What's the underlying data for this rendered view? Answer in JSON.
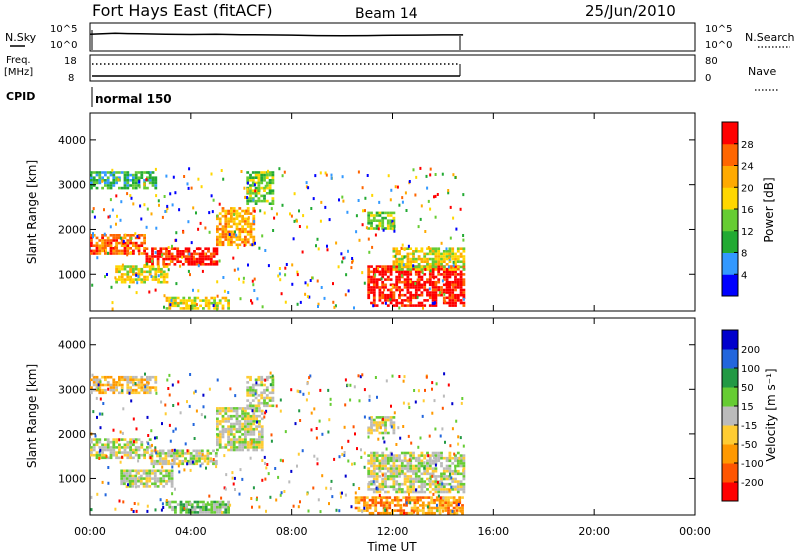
{
  "header": {
    "station": "Fort Hays East (fitACF)",
    "beam": "Beam 14",
    "date": "25/Jun/2010"
  },
  "nsky_panel": {
    "left_label": "N.Sky",
    "left_ticks": [
      "10^5",
      "10^0"
    ],
    "right_ticks": [
      "10^5",
      "10^0"
    ],
    "right_label": "N.Search",
    "nsky_profile": [
      [
        0.0,
        0.88
      ],
      [
        0.5,
        0.9
      ],
      [
        1.0,
        0.93
      ],
      [
        1.5,
        0.91
      ],
      [
        2.0,
        0.9
      ],
      [
        3.0,
        0.88
      ],
      [
        4.0,
        0.86
      ],
      [
        5.0,
        0.87
      ],
      [
        6.0,
        0.85
      ],
      [
        7.0,
        0.84
      ],
      [
        8.0,
        0.83
      ],
      [
        9.0,
        0.8
      ],
      [
        10.0,
        0.79
      ],
      [
        11.0,
        0.8
      ],
      [
        12.0,
        0.82
      ],
      [
        13.0,
        0.83
      ],
      [
        14.0,
        0.84
      ],
      [
        14.8,
        0.84
      ]
    ]
  },
  "freq_panel": {
    "left_label_line1": "Freq.",
    "left_label_line2": "[MHz]",
    "left_ticks": [
      "18",
      "8"
    ],
    "right_ticks": [
      "80",
      "0"
    ],
    "right_label": "Nave"
  },
  "cpid": {
    "label": "CPID",
    "value": "normal 150"
  },
  "colors": {
    "power": [
      "#0000ff",
      "#3399ff",
      "#22aa33",
      "#66cc33",
      "#ffd700",
      "#ffaa00",
      "#ff6600",
      "#ff0000"
    ],
    "velocity": [
      "#ff0000",
      "#ff5500",
      "#ff9900",
      "#ffcc33",
      "#bbbbbb",
      "#66cc33",
      "#229944",
      "#2266dd",
      "#0000cc"
    ]
  },
  "chart_data": [
    {
      "type": "heatmap",
      "panel": "power",
      "xlabel": "",
      "ylabel": "Slant Range [km]",
      "xlim": [
        0,
        24
      ],
      "ylim": [
        180,
        4600
      ],
      "yticks": [
        1000,
        2000,
        3000,
        4000
      ],
      "colorbar_label": "Power [dB]",
      "colorbar_ticks": [
        "4",
        "8",
        "12",
        "16",
        "20",
        "24",
        "28"
      ],
      "data_extent_hours": [
        0,
        14.8
      ],
      "regions": [
        {
          "t": [
            0.0,
            2.2
          ],
          "r": [
            1450,
            1900
          ],
          "level": 6
        },
        {
          "t": [
            2.2,
            5.0
          ],
          "r": [
            1250,
            1600
          ],
          "level": 7
        },
        {
          "t": [
            5.0,
            6.5
          ],
          "r": [
            1650,
            2500
          ],
          "level": 5
        },
        {
          "t": [
            6.2,
            7.2
          ],
          "r": [
            2600,
            3300
          ],
          "level": 3
        },
        {
          "t": [
            0.0,
            2.6
          ],
          "r": [
            2900,
            3300
          ],
          "level": 2
        },
        {
          "t": [
            1.0,
            3.0
          ],
          "r": [
            800,
            1200
          ],
          "level": 4
        },
        {
          "t": [
            3.0,
            5.5
          ],
          "r": [
            250,
            500
          ],
          "level": 4
        },
        {
          "t": [
            11.0,
            12.0
          ],
          "r": [
            2000,
            2400
          ],
          "level": 3
        },
        {
          "t": [
            11.0,
            14.8
          ],
          "r": [
            300,
            1200
          ],
          "level": 7
        },
        {
          "t": [
            12.0,
            14.8
          ],
          "r": [
            1100,
            1600
          ],
          "level": 4
        }
      ]
    },
    {
      "type": "heatmap",
      "panel": "velocity",
      "xlabel": "Time UT",
      "ylabel": "Slant Range [km]",
      "xlim": [
        0,
        24
      ],
      "ylim": [
        180,
        4600
      ],
      "yticks": [
        1000,
        2000,
        3000,
        4000
      ],
      "xticks": [
        "00:00",
        "04:00",
        "08:00",
        "12:00",
        "16:00",
        "20:00",
        "00:00"
      ],
      "colorbar_label": "Velocity [m s⁻¹]",
      "colorbar_ticks": [
        "-200",
        "-100",
        "-50",
        "-15",
        "15",
        "50",
        "100",
        "200"
      ],
      "data_extent_hours": [
        0,
        14.8
      ],
      "regions": [
        {
          "t": [
            0.0,
            2.4
          ],
          "r": [
            1450,
            1900
          ],
          "level": 4
        },
        {
          "t": [
            2.4,
            5.0
          ],
          "r": [
            1300,
            1650
          ],
          "level": 4
        },
        {
          "t": [
            5.0,
            6.8
          ],
          "r": [
            1650,
            2600
          ],
          "level": 4
        },
        {
          "t": [
            6.2,
            7.3
          ],
          "r": [
            2600,
            3300
          ],
          "level": 4
        },
        {
          "t": [
            0.0,
            2.6
          ],
          "r": [
            2900,
            3300
          ],
          "level": 3
        },
        {
          "t": [
            1.2,
            3.2
          ],
          "r": [
            800,
            1200
          ],
          "level": 4
        },
        {
          "t": [
            3.0,
            5.5
          ],
          "r": [
            250,
            500
          ],
          "level": 5
        },
        {
          "t": [
            11.0,
            12.0
          ],
          "r": [
            2000,
            2400
          ],
          "level": 4
        },
        {
          "t": [
            11.0,
            14.8
          ],
          "r": [
            700,
            1600
          ],
          "level": 4
        },
        {
          "t": [
            10.5,
            14.8
          ],
          "r": [
            200,
            600
          ],
          "level": 2
        }
      ]
    }
  ]
}
